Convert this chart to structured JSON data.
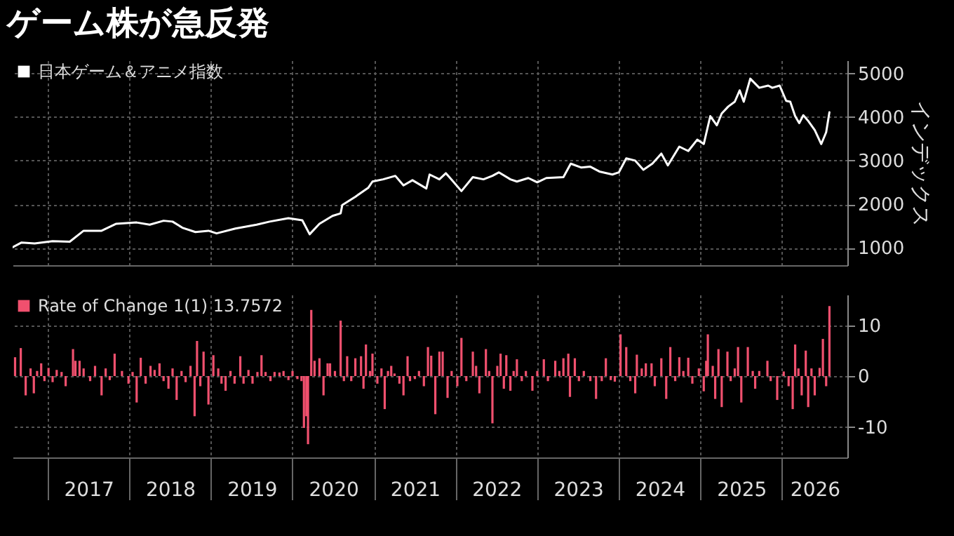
{
  "chart_data": [
    {
      "type": "line",
      "title": "ゲーム株が急反発",
      "ylabel": "インデックス",
      "xlim": [
        2016.57,
        2026.8
      ],
      "xticks": [
        {
          "value": 2017,
          "label": null
        },
        {
          "value": 2018,
          "label": null
        },
        {
          "value": 2019,
          "label": null
        },
        {
          "value": 2020,
          "label": null
        },
        {
          "value": 2021,
          "label": null
        },
        {
          "value": 2022,
          "label": null
        },
        {
          "value": 2023,
          "label": null
        },
        {
          "value": 2024,
          "label": null
        },
        {
          "value": 2025,
          "label": null
        },
        {
          "value": 2026,
          "label": null
        }
      ],
      "ylim": [
        600,
        5300
      ],
      "yticks": [
        1000,
        2000,
        3000,
        4000,
        5000
      ],
      "grid": true,
      "legend": "top left",
      "tick_labels": "y",
      "series": [
        {
          "name": "日本ゲーム＆アニメ指数",
          "color": "#ffffff",
          "x": [
            2016.57,
            2016.68,
            2016.84,
            2017.06,
            2017.27,
            2017.44,
            2017.66,
            2017.84,
            2018.09,
            2018.25,
            2018.42,
            2018.53,
            2018.65,
            2018.81,
            2018.97,
            2019.07,
            2019.3,
            2019.56,
            2019.72,
            2019.95,
            2020.12,
            2020.21,
            2020.33,
            2020.49,
            2020.59,
            2020.61,
            2020.77,
            2020.93,
            2020.98,
            2021.11,
            2021.26,
            2021.36,
            2021.47,
            2021.64,
            2021.68,
            2021.8,
            2021.88,
            2021.96,
            2022.07,
            2022.21,
            2022.34,
            2022.45,
            2022.53,
            2022.67,
            2022.75,
            2022.89,
            2023.0,
            2023.11,
            2023.32,
            2023.41,
            2023.54,
            2023.65,
            2023.76,
            2023.92,
            2024.0,
            2024.09,
            2024.2,
            2024.3,
            2024.41,
            2024.52,
            2024.6,
            2024.74,
            2024.85,
            2024.96,
            2025.04,
            2025.12,
            2025.2,
            2025.26,
            2025.34,
            2025.42,
            2025.48,
            2025.53,
            2025.61,
            2025.72,
            2025.83,
            2025.88,
            2025.97,
            2026.05,
            2026.1,
            2026.16,
            2026.21,
            2026.26,
            2026.32,
            2026.4,
            2026.48,
            2026.54,
            2026.58
          ],
          "values": [
            1010,
            1120,
            1100,
            1150,
            1140,
            1390,
            1390,
            1550,
            1580,
            1530,
            1620,
            1600,
            1460,
            1360,
            1390,
            1330,
            1440,
            1530,
            1600,
            1680,
            1630,
            1310,
            1550,
            1730,
            1790,
            1980,
            2170,
            2380,
            2520,
            2570,
            2650,
            2430,
            2550,
            2360,
            2680,
            2570,
            2710,
            2540,
            2300,
            2620,
            2570,
            2650,
            2730,
            2570,
            2520,
            2600,
            2500,
            2600,
            2620,
            2930,
            2840,
            2860,
            2750,
            2680,
            2730,
            3050,
            3000,
            2790,
            2930,
            3160,
            2890,
            3320,
            3220,
            3480,
            3380,
            4020,
            3810,
            4080,
            4240,
            4350,
            4610,
            4350,
            4880,
            4670,
            4720,
            4670,
            4720,
            4370,
            4350,
            4020,
            3860,
            4040,
            3910,
            3700,
            3380,
            3650,
            4110
          ]
        }
      ]
    },
    {
      "type": "bar",
      "xlim": [
        2016.57,
        2026.8
      ],
      "xticks": [
        {
          "value": 2017,
          "label": null
        },
        {
          "value": 2017.5,
          "label": "2017"
        },
        {
          "value": 2018,
          "label": null
        },
        {
          "value": 2018.5,
          "label": "2018"
        },
        {
          "value": 2019,
          "label": null
        },
        {
          "value": 2019.5,
          "label": "2019"
        },
        {
          "value": 2020,
          "label": null
        },
        {
          "value": 2020.5,
          "label": "2020"
        },
        {
          "value": 2021,
          "label": null
        },
        {
          "value": 2021.5,
          "label": "2021"
        },
        {
          "value": 2022,
          "label": null
        },
        {
          "value": 2022.5,
          "label": "2022"
        },
        {
          "value": 2023,
          "label": null
        },
        {
          "value": 2023.5,
          "label": "2023"
        },
        {
          "value": 2024,
          "label": null
        },
        {
          "value": 2024.5,
          "label": "2024"
        },
        {
          "value": 2025,
          "label": null
        },
        {
          "value": 2025.5,
          "label": "2025"
        },
        {
          "value": 2026,
          "label": null
        },
        {
          "value": 2026.4,
          "label": "2026"
        }
      ],
      "ylim": [
        -16,
        16
      ],
      "yticks": [
        -10,
        0,
        10
      ],
      "grid": true,
      "legend": "top left",
      "series": [
        {
          "name": "Rate of Change 1(1) 13.7572",
          "color": "#f0506e",
          "x": [
            2016.6,
            2016.67,
            2016.73,
            2016.79,
            2016.83,
            2016.87,
            2016.92,
            2016.96,
            2017.01,
            2017.06,
            2017.11,
            2017.17,
            2017.22,
            2017.31,
            2017.34,
            2017.39,
            2017.44,
            2017.52,
            2017.58,
            2017.66,
            2017.71,
            2017.76,
            2017.82,
            2017.91,
            2017.99,
            2018.04,
            2018.09,
            2018.14,
            2018.2,
            2018.26,
            2018.31,
            2018.37,
            2018.42,
            2018.48,
            2018.53,
            2018.58,
            2018.64,
            2018.69,
            2018.75,
            2018.8,
            2018.83,
            2018.87,
            2018.91,
            2018.97,
            2019.03,
            2019.09,
            2019.13,
            2019.18,
            2019.24,
            2019.29,
            2019.36,
            2019.4,
            2019.46,
            2019.51,
            2019.57,
            2019.62,
            2019.67,
            2019.73,
            2019.78,
            2019.84,
            2019.89,
            2019.95,
            2020.0,
            2020.06,
            2020.11,
            2020.14,
            2020.17,
            2020.19,
            2020.23,
            2020.27,
            2020.33,
            2020.38,
            2020.43,
            2020.46,
            2020.52,
            2020.59,
            2020.63,
            2020.67,
            2020.72,
            2020.77,
            2020.84,
            2020.87,
            2020.9,
            2020.95,
            2020.98,
            2021.04,
            2021.09,
            2021.13,
            2021.17,
            2021.21,
            2021.25,
            2021.31,
            2021.36,
            2021.41,
            2021.44,
            2021.5,
            2021.55,
            2021.61,
            2021.66,
            2021.7,
            2021.75,
            2021.8,
            2021.84,
            2021.9,
            2021.95,
            2022.02,
            2022.07,
            2022.13,
            2022.21,
            2022.25,
            2022.29,
            2022.37,
            2022.41,
            2022.45,
            2022.51,
            2022.55,
            2022.59,
            2022.62,
            2022.67,
            2022.71,
            2022.75,
            2022.81,
            2022.86,
            2022.94,
            2023.0,
            2023.08,
            2023.13,
            2023.22,
            2023.27,
            2023.32,
            2023.38,
            2023.4,
            2023.46,
            2023.51,
            2023.57,
            2023.65,
            2023.72,
            2023.79,
            2023.84,
            2023.9,
            2023.95,
            2024.02,
            2024.09,
            2024.14,
            2024.2,
            2024.22,
            2024.28,
            2024.33,
            2024.4,
            2024.44,
            2024.52,
            2024.58,
            2024.63,
            2024.69,
            2024.74,
            2024.79,
            2024.85,
            2024.9,
            2024.98,
            2025.04,
            2025.07,
            2025.09,
            2025.15,
            2025.18,
            2025.22,
            2025.26,
            2025.33,
            2025.37,
            2025.42,
            2025.46,
            2025.5,
            2025.58,
            2025.64,
            2025.67,
            2025.72,
            2025.82,
            2025.86,
            2025.94,
            2026.02,
            2026.08,
            2026.13,
            2026.16,
            2026.2,
            2026.24,
            2026.29,
            2026.32,
            2026.36,
            2026.4,
            2026.46,
            2026.5,
            2026.54,
            2026.58
          ],
          "values": [
            3.7,
            5.5,
            -3.8,
            1.5,
            -3.4,
            1.0,
            2.5,
            -1.0,
            1.6,
            -1.2,
            1.2,
            0.8,
            -2.0,
            5.3,
            3.0,
            3.0,
            1.5,
            -1.0,
            2.0,
            -3.8,
            1.5,
            -0.8,
            4.4,
            1.0,
            -1.5,
            0.8,
            -5.2,
            3.6,
            -1.5,
            2.0,
            1.2,
            2.5,
            -1.0,
            -2.5,
            1.5,
            -4.7,
            1.0,
            -1.2,
            2.0,
            -7.9,
            6.9,
            -2.0,
            4.8,
            -5.6,
            4.1,
            1.5,
            -1.5,
            -2.9,
            1.0,
            -1.5,
            3.9,
            -1.5,
            1.2,
            -1.5,
            0.8,
            4.1,
            0.8,
            -1.0,
            0.8,
            0.7,
            1.0,
            -0.8,
            1.0,
            -0.6,
            -1.0,
            -10.2,
            -7.9,
            -13.4,
            13.0,
            3.0,
            3.5,
            -3.8,
            2.5,
            2.5,
            1.0,
            10.9,
            -1.0,
            3.9,
            -1.0,
            3.5,
            3.9,
            -2.5,
            6.2,
            1.0,
            4.4,
            -1.5,
            1.5,
            -6.5,
            1.0,
            2.0,
            0.5,
            -1.5,
            -3.8,
            3.9,
            -1.0,
            -0.6,
            1.0,
            -2.0,
            5.7,
            4.0,
            -7.5,
            4.8,
            4.8,
            -4.3,
            1.0,
            -2.0,
            7.5,
            -1.0,
            4.8,
            2.0,
            -3.4,
            5.3,
            1.0,
            -9.3,
            2.0,
            4.4,
            -2.5,
            4.1,
            -2.9,
            1.0,
            3.3,
            -1.0,
            1.0,
            -2.9,
            1.0,
            3.3,
            -1.0,
            3.0,
            1.0,
            3.5,
            4.4,
            -4.1,
            3.5,
            -1.0,
            1.0,
            -1.0,
            -4.5,
            -1.0,
            3.5,
            -0.8,
            -1.1,
            8.2,
            5.7,
            -1.0,
            -3.4,
            4.2,
            1.5,
            2.5,
            2.5,
            -2.0,
            3.5,
            -4.5,
            5.7,
            -1.0,
            3.7,
            1.0,
            3.6,
            -1.5,
            1.5,
            -3.0,
            3.0,
            8.2,
            2.0,
            -4.5,
            5.3,
            -6.1,
            4.8,
            -1.0,
            1.5,
            5.7,
            -5.2,
            5.7,
            1.0,
            -2.5,
            1.0,
            3.0,
            -1.0,
            -4.7,
            0.9,
            -2.0,
            -6.5,
            6.2,
            1.5,
            -3.8,
            5.0,
            -6.1,
            1.5,
            -3.8,
            1.6,
            7.3,
            -2.0,
            13.7572
          ]
        }
      ]
    }
  ]
}
